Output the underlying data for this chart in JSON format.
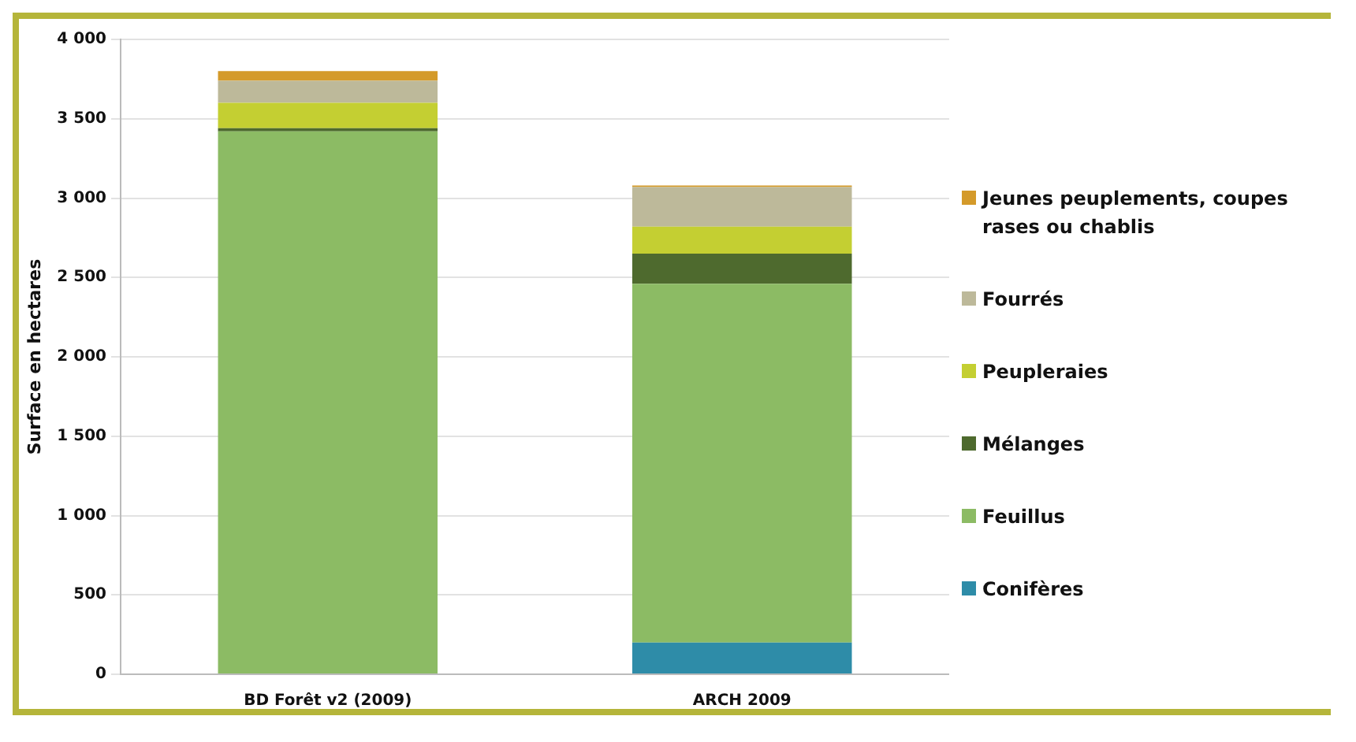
{
  "chart_data": {
    "type": "bar",
    "stacked": true,
    "ylabel": "Surface en hectares",
    "categories": [
      "BD Forêt v2 (2009)",
      "ARCH 2009"
    ],
    "series": [
      {
        "name": "Conifères",
        "color": "#2e8ca8",
        "values": [
          0,
          200
        ]
      },
      {
        "name": "Feuillus",
        "color": "#8cbb64",
        "values": [
          3420,
          2260
        ]
      },
      {
        "name": "Mélanges",
        "color": "#4e6a2e",
        "values": [
          20,
          190
        ]
      },
      {
        "name": "Peupleraies",
        "color": "#c4cf32",
        "values": [
          160,
          170
        ]
      },
      {
        "name": "Fourrés",
        "color": "#bdb99a",
        "values": [
          140,
          250
        ]
      },
      {
        "name": "Jeunes peuplements, coupes rases ou chablis",
        "color": "#d49a2a",
        "values": [
          60,
          10
        ]
      }
    ],
    "ylim": [
      0,
      4000
    ],
    "yticks": [
      {
        "value": 0,
        "label": "0"
      },
      {
        "value": 500,
        "label": "500"
      },
      {
        "value": 1000,
        "label": "1 000"
      },
      {
        "value": 1500,
        "label": "1 500"
      },
      {
        "value": 2000,
        "label": "2 000"
      },
      {
        "value": 2500,
        "label": "2 500"
      },
      {
        "value": 3000,
        "label": "3 000"
      },
      {
        "value": 3500,
        "label": "3 500"
      },
      {
        "value": 4000,
        "label": "4 000"
      }
    ],
    "grid": "y",
    "legend": "right"
  }
}
